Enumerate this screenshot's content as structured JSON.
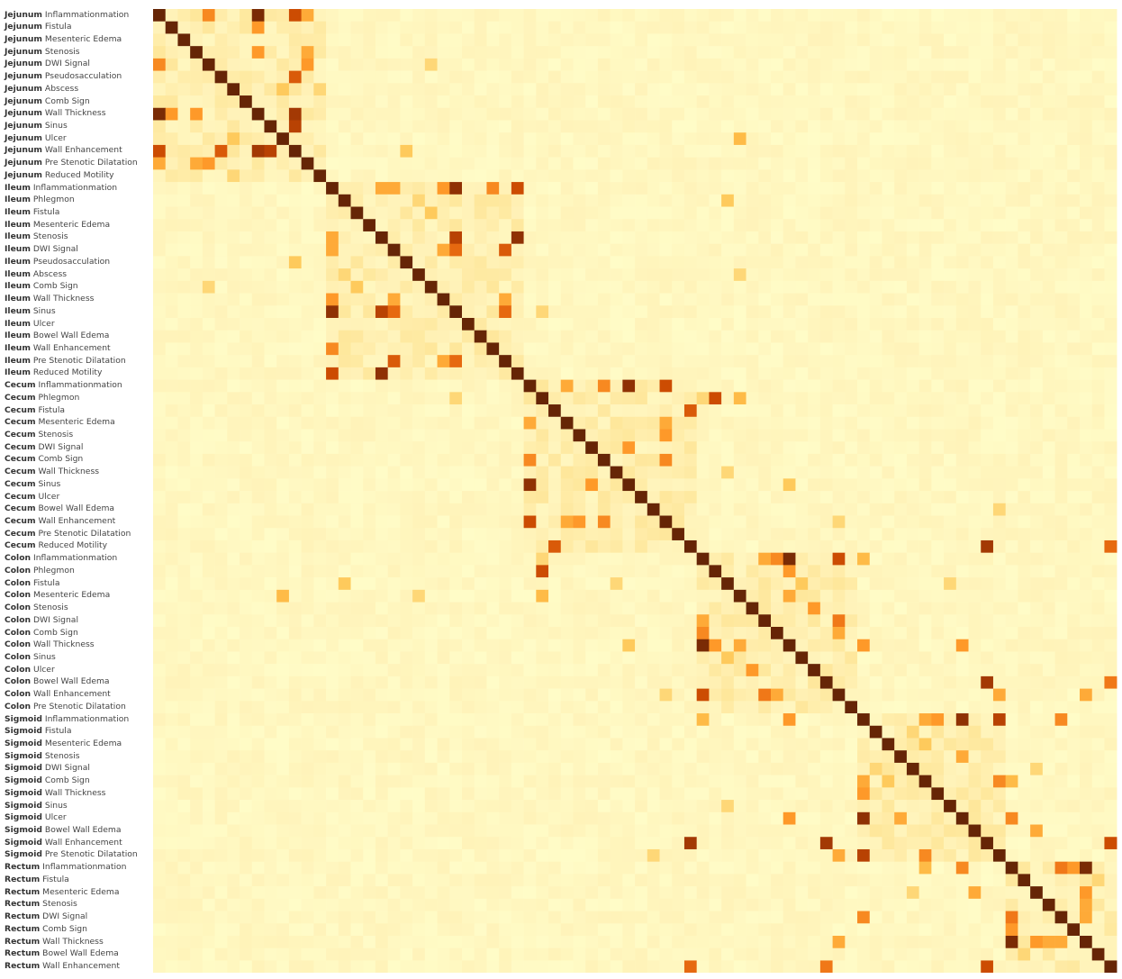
{
  "chart_data": {
    "type": "heatmap",
    "title": "",
    "color_scale": [
      "#ffffcc",
      "#fff2b8",
      "#fee391",
      "#fec44f",
      "#fe9929",
      "#ec7014",
      "#cc4c02",
      "#993404",
      "#662506"
    ],
    "segments": [
      {
        "name": "Jejunum",
        "findings": [
          "Inflammationmation",
          "Fistula",
          "Mesenteric Edema",
          "Stenosis",
          "DWI Signal",
          "Pseudosacculation",
          "Abscess",
          "Comb Sign",
          "Wall Thickness",
          "Sinus",
          "Ulcer",
          "Wall Enhancement",
          "Pre Stenotic Dilatation",
          "Reduced Motility"
        ]
      },
      {
        "name": "Ileum",
        "findings": [
          "Inflammationmation",
          "Phlegmon",
          "Fistula",
          "Mesenteric Edema",
          "Stenosis",
          "DWI Signal",
          "Pseudosacculation",
          "Abscess",
          "Comb Sign",
          "Wall Thickness",
          "Sinus",
          "Ulcer",
          "Bowel Wall Edema",
          "Wall Enhancement",
          "Pre Stenotic Dilatation",
          "Reduced Motility"
        ]
      },
      {
        "name": "Cecum",
        "findings": [
          "Inflammationmation",
          "Phlegmon",
          "Fistula",
          "Mesenteric Edema",
          "Stenosis",
          "DWI Signal",
          "Comb Sign",
          "Wall Thickness",
          "Sinus",
          "Ulcer",
          "Bowel Wall Edema",
          "Wall Enhancement",
          "Pre Stenotic Dilatation",
          "Reduced Motility"
        ]
      },
      {
        "name": "Colon",
        "findings": [
          "Inflammationmation",
          "Phlegmon",
          "Fistula",
          "Mesenteric Edema",
          "Stenosis",
          "DWI Signal",
          "Comb Sign",
          "Wall Thickness",
          "Sinus",
          "Ulcer",
          "Bowel Wall Edema",
          "Wall Enhancement",
          "Pre Stenotic Dilatation"
        ]
      },
      {
        "name": "Sigmoid",
        "findings": [
          "Inflammationmation",
          "Fistula",
          "Mesenteric Edema",
          "Stenosis",
          "DWI Signal",
          "Comb Sign",
          "Wall Thickness",
          "Sinus",
          "Ulcer",
          "Bowel Wall Edema",
          "Wall Enhancement",
          "Pre Stenotic Dilatation"
        ]
      },
      {
        "name": "Rectum",
        "findings": [
          "Inflammationmation",
          "Fistula",
          "Mesenteric Edema",
          "Stenosis",
          "DWI Signal",
          "Comb Sign",
          "Wall Thickness",
          "Bowel Wall Edema",
          "Wall Enhancement"
        ]
      }
    ],
    "diagonal_value": 1.0,
    "value_range": [
      0,
      1
    ],
    "strong_pairs": [
      [
        0,
        8,
        0.95
      ],
      [
        0,
        11,
        0.75
      ],
      [
        0,
        4,
        0.55
      ],
      [
        0,
        12,
        0.45
      ],
      [
        8,
        11,
        0.85
      ],
      [
        3,
        8,
        0.5
      ],
      [
        5,
        11,
        0.7
      ],
      [
        4,
        12,
        0.5
      ],
      [
        9,
        11,
        0.8
      ],
      [
        3,
        12,
        0.45
      ],
      [
        1,
        8,
        0.5
      ],
      [
        10,
        6,
        0.35
      ],
      [
        6,
        13,
        0.3
      ],
      [
        14,
        24,
        0.9
      ],
      [
        14,
        29,
        0.75
      ],
      [
        14,
        27,
        0.55
      ],
      [
        14,
        23,
        0.5
      ],
      [
        14,
        18,
        0.45
      ],
      [
        14,
        19,
        0.45
      ],
      [
        18,
        24,
        0.8
      ],
      [
        18,
        29,
        0.9
      ],
      [
        19,
        24,
        0.65
      ],
      [
        19,
        28,
        0.7
      ],
      [
        24,
        28,
        0.65
      ],
      [
        19,
        23,
        0.45
      ],
      [
        23,
        28,
        0.45
      ],
      [
        15,
        21,
        0.3
      ],
      [
        16,
        22,
        0.35
      ],
      [
        30,
        38,
        0.9
      ],
      [
        30,
        41,
        0.75
      ],
      [
        30,
        36,
        0.55
      ],
      [
        30,
        33,
        0.45
      ],
      [
        34,
        41,
        0.5
      ],
      [
        35,
        38,
        0.5
      ],
      [
        31,
        45,
        0.75
      ],
      [
        31,
        44,
        0.3
      ],
      [
        32,
        43,
        0.7
      ],
      [
        36,
        41,
        0.55
      ],
      [
        33,
        41,
        0.45
      ],
      [
        37,
        46,
        0.3
      ],
      [
        44,
        51,
        0.95
      ],
      [
        44,
        55,
        0.75
      ],
      [
        44,
        50,
        0.55
      ],
      [
        44,
        49,
        0.45
      ],
      [
        49,
        55,
        0.6
      ],
      [
        48,
        53,
        0.5
      ],
      [
        47,
        51,
        0.45
      ],
      [
        45,
        51,
        0.5
      ],
      [
        46,
        52,
        0.35
      ],
      [
        50,
        55,
        0.45
      ],
      [
        57,
        65,
        0.9
      ],
      [
        57,
        68,
        0.8
      ],
      [
        57,
        63,
        0.5
      ],
      [
        57,
        62,
        0.45
      ],
      [
        60,
        65,
        0.45
      ],
      [
        62,
        68,
        0.55
      ],
      [
        58,
        61,
        0.3
      ],
      [
        59,
        62,
        0.35
      ],
      [
        66,
        71,
        0.45
      ],
      [
        69,
        75,
        0.95
      ],
      [
        69,
        73,
        0.6
      ],
      [
        69,
        74,
        0.5
      ],
      [
        71,
        75,
        0.5
      ],
      [
        72,
        75,
        0.45
      ],
      [
        70,
        76,
        0.3
      ],
      [
        73,
        75,
        0.45
      ],
      [
        43,
        67,
        0.85
      ],
      [
        43,
        77,
        0.65
      ],
      [
        67,
        77,
        0.75
      ],
      [
        54,
        67,
        0.85
      ],
      [
        54,
        77,
        0.6
      ],
      [
        31,
        47,
        0.4
      ],
      [
        11,
        20,
        0.35
      ],
      [
        4,
        22,
        0.3
      ],
      [
        24,
        31,
        0.3
      ],
      [
        44,
        57,
        0.4
      ],
      [
        51,
        57,
        0.5
      ],
      [
        51,
        65,
        0.5
      ],
      [
        57,
        73,
        0.55
      ],
      [
        65,
        69,
        0.55
      ],
      [
        55,
        68,
        0.45
      ],
      [
        62,
        69,
        0.4
      ],
      [
        55,
        75,
        0.45
      ],
      [
        41,
        55,
        0.3
      ],
      [
        15,
        46,
        0.35
      ],
      [
        46,
        64,
        0.3
      ],
      [
        61,
        71,
        0.3
      ],
      [
        40,
        68,
        0.3
      ],
      [
        38,
        51,
        0.35
      ],
      [
        10,
        47,
        0.4
      ],
      [
        21,
        47,
        0.3
      ]
    ]
  }
}
